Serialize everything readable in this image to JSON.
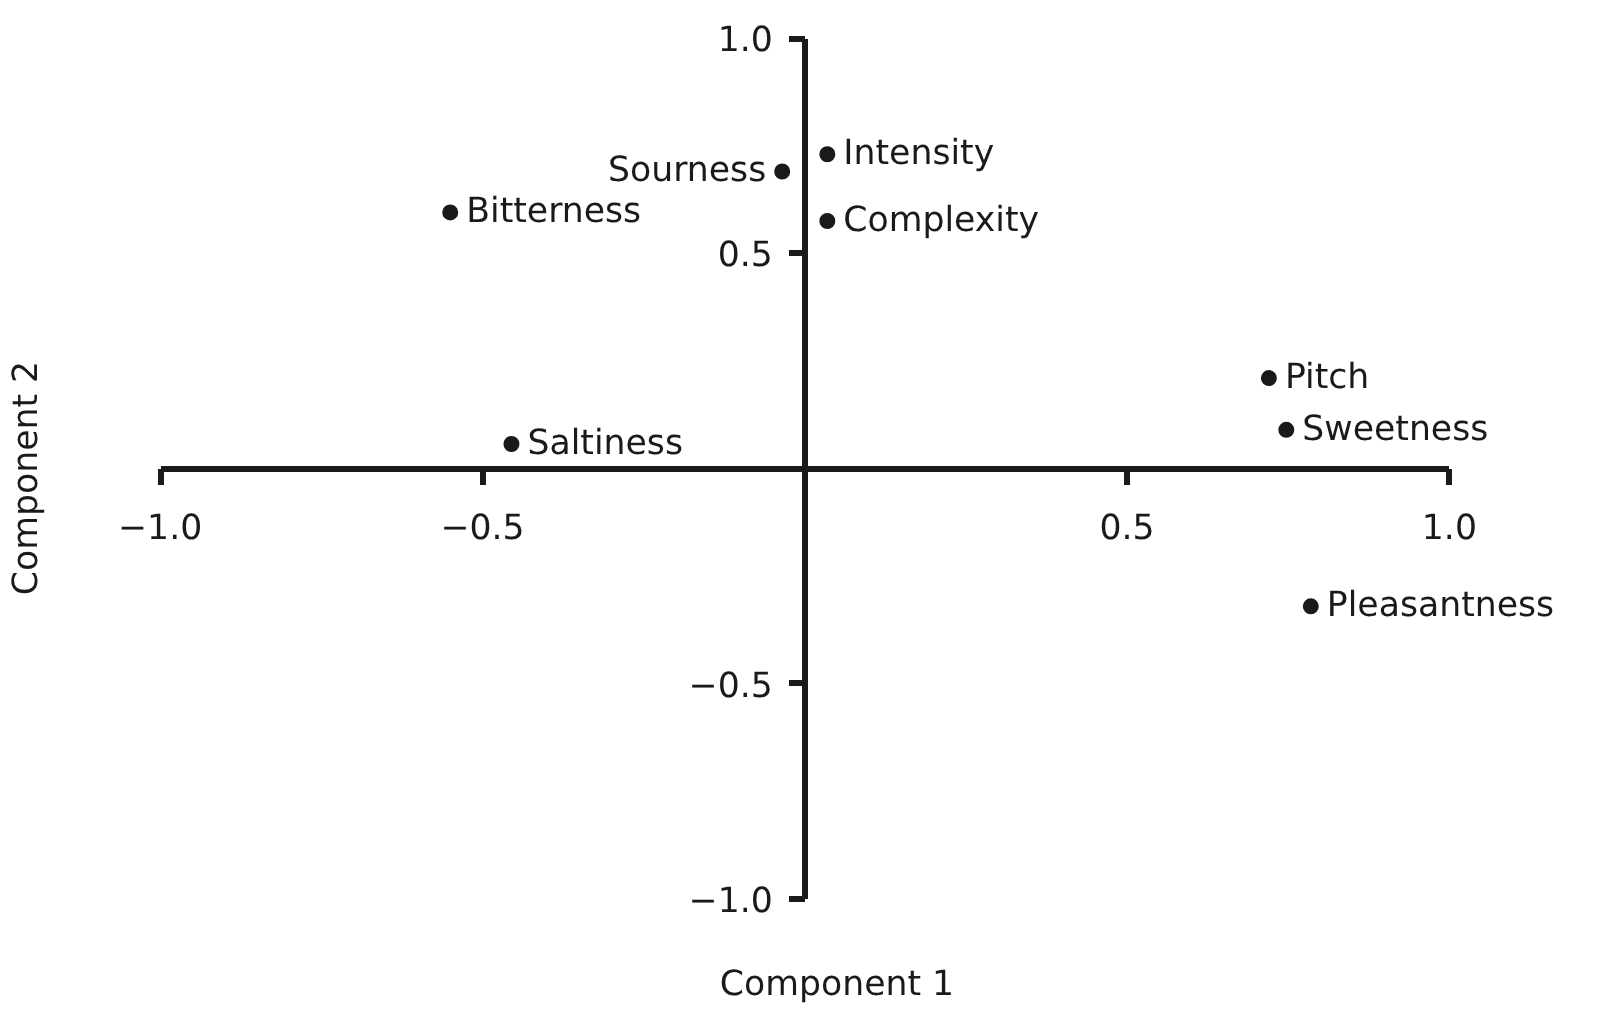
{
  "chart_data": {
    "type": "scatter",
    "xlabel": "Component 1",
    "ylabel": "Component 2",
    "color": "#1a1a1a",
    "marker": "circle",
    "grid": false,
    "x": [
      -0.035,
      0.035,
      0.035,
      -0.55,
      -0.455,
      0.72,
      0.747,
      0.785
    ],
    "values": [
      0.69,
      0.73,
      0.575,
      0.595,
      0.057,
      0.21,
      0.09,
      -0.32
    ],
    "annotations": [
      {
        "text": "Sourness",
        "x": -0.035,
        "y": 0.69
      },
      {
        "text": "Intensity",
        "x": 0.035,
        "y": 0.73
      },
      {
        "text": "Complexity",
        "x": 0.035,
        "y": 0.575
      },
      {
        "text": "Bitterness",
        "x": -0.55,
        "y": 0.595
      },
      {
        "text": "Saltiness",
        "x": -0.455,
        "y": 0.057
      },
      {
        "text": "Pitch",
        "x": 0.72,
        "y": 0.21
      },
      {
        "text": "Sweetness",
        "x": 0.747,
        "y": 0.09
      },
      {
        "text": "Pleasantness",
        "x": 0.785,
        "y": -0.32
      }
    ],
    "xlim": [
      -1,
      1
    ],
    "ylim": [
      -1,
      1
    ],
    "xticks": [
      {
        "value": -1,
        "label": "−1.0"
      },
      {
        "value": -0.5,
        "label": "−0.5"
      },
      {
        "value": 0.5,
        "label": "0.5"
      },
      {
        "value": 1,
        "label": "1.0"
      }
    ],
    "yticks": [
      {
        "value": -1,
        "label": "−1.0"
      },
      {
        "value": -0.5,
        "label": "−0.5"
      },
      {
        "value": 0.5,
        "label": "0.5"
      },
      {
        "value": 1,
        "label": "1.0"
      }
    ]
  }
}
